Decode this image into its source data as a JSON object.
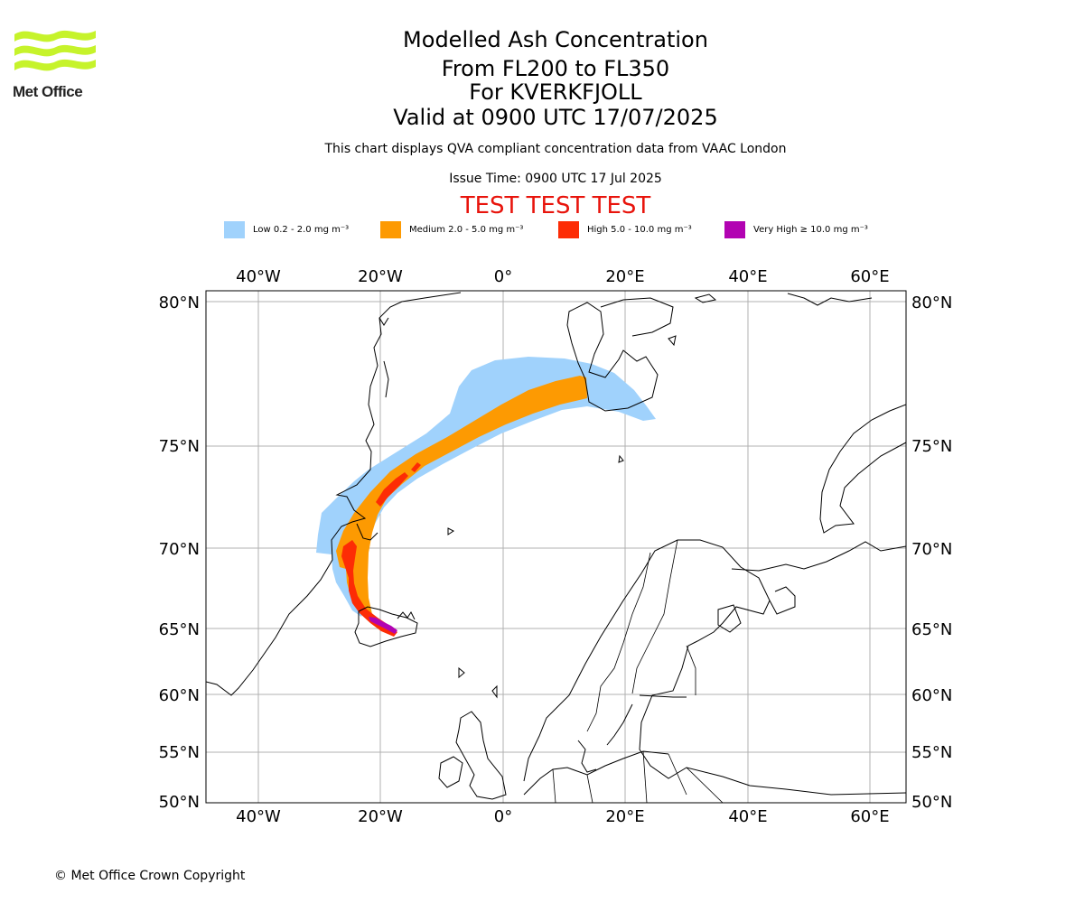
{
  "header": {
    "logo_text": "Met Office",
    "title": "Modelled Ash Concentration",
    "level_range": "From FL200 to FL350",
    "volcano": "For KVERKFJOLL",
    "valid_time": "Valid at 0900 UTC 17/07/2025",
    "description": "This chart displays QVA compliant concentration data from VAAC London",
    "issue_time": "Issue Time: 0900 UTC 17 Jul 2025",
    "test_banner": "TEST TEST TEST"
  },
  "legend": [
    {
      "label": "Low 0.2 - 2.0 mg m⁻³",
      "color": "#a0d2fc"
    },
    {
      "label": "Medium 2.0 - 5.0 mg m⁻³",
      "color": "#fd9a02"
    },
    {
      "label": "High 5.0 - 10.0 mg m⁻³",
      "color": "#fd2c05"
    },
    {
      "label": "Very High  ≥  10.0 mg m⁻³",
      "color": "#b203b2"
    }
  ],
  "map": {
    "lon_labels": [
      "40°W",
      "20°W",
      "0°",
      "20°E",
      "40°E",
      "60°E"
    ],
    "lat_labels": [
      "80°N",
      "75°N",
      "70°N",
      "65°N",
      "60°N",
      "55°N",
      "50°N"
    ],
    "colors": {
      "coast": "#000000",
      "grid": "#b0b0b0"
    }
  },
  "footer": {
    "copyright": "© Met Office Crown Copyright"
  }
}
